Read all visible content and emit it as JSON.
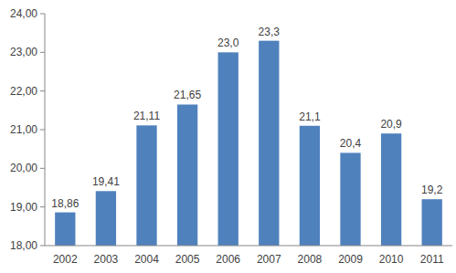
{
  "chart_data": {
    "type": "bar",
    "categories": [
      "2002",
      "2003",
      "2004",
      "2005",
      "2006",
      "2007",
      "2008",
      "2009",
      "2010",
      "2011"
    ],
    "values": [
      18.86,
      19.41,
      21.11,
      21.65,
      23.0,
      23.3,
      21.1,
      20.4,
      20.9,
      19.2
    ],
    "value_labels": [
      "18,86",
      "19,41",
      "21,11",
      "21,65",
      "23,0",
      "23,3",
      "21,1",
      "20,4",
      "20,9",
      "19,2"
    ],
    "data_labels": true,
    "color": "#4f81bd",
    "ylim": [
      18,
      24
    ],
    "yticks": [
      {
        "value": 18,
        "label": "18,00"
      },
      {
        "value": 19,
        "label": "19,00"
      },
      {
        "value": 20,
        "label": "20,00"
      },
      {
        "value": 21,
        "label": "21,00"
      },
      {
        "value": 22,
        "label": "22,00"
      },
      {
        "value": 23,
        "label": "23,00"
      },
      {
        "value": 24,
        "label": "24,00"
      }
    ],
    "grid": false
  }
}
